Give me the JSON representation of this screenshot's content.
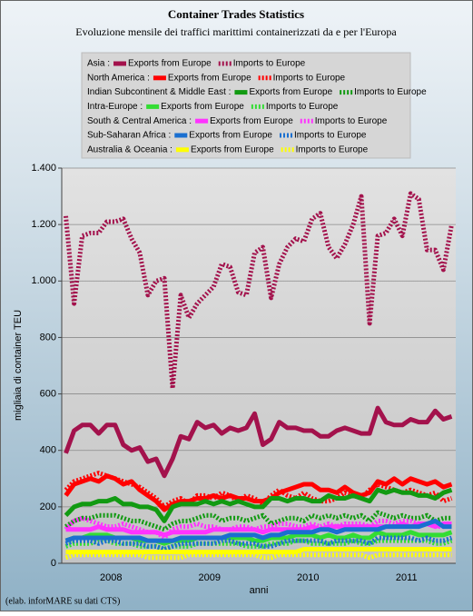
{
  "chart_data": {
    "type": "line",
    "title": "Container Trades Statistics",
    "subtitle": "Evoluzione mensile dei traffici marittimi containerizzati da e per l'Europa",
    "y_label": "migliaia di container TEU",
    "x_label": "anni",
    "source": "(elab. inforMARE su dati CTS)",
    "categories": [
      null,
      null,
      null,
      null,
      null,
      "2008",
      null,
      null,
      null,
      null,
      null,
      null,
      null,
      null,
      null,
      null,
      null,
      "2009",
      null,
      null,
      null,
      null,
      null,
      null,
      null,
      null,
      null,
      null,
      null,
      "2010",
      null,
      null,
      null,
      null,
      null,
      null,
      null,
      null,
      null,
      null,
      null,
      "2011",
      null,
      null,
      null,
      null,
      null,
      null
    ],
    "ylim": [
      0,
      1400
    ],
    "yticks": [
      0,
      200,
      400,
      600,
      800,
      {
        "value": 1000,
        "label": "1.000"
      },
      {
        "value": 1200,
        "label": "1.200"
      },
      {
        "value": 1400,
        "label": "1.400"
      }
    ],
    "grid": true,
    "groups": [
      "Asia :",
      "North America :",
      "Indian Subcontinent & Middle East :",
      "Intra-Europe :",
      "South & Central America :",
      "Sub-Saharan Africa :",
      "Australia & Oceania :"
    ],
    "series": [
      {
        "name": "Exports from Europe",
        "color": "#a3124c",
        "dashed": false,
        "values": [
          390,
          470,
          490,
          490,
          460,
          490,
          490,
          420,
          400,
          410,
          360,
          370,
          310,
          370,
          450,
          440,
          500,
          480,
          490,
          460,
          480,
          470,
          480,
          530,
          420,
          440,
          500,
          480,
          480,
          470,
          470,
          450,
          450,
          470,
          480,
          470,
          460,
          460,
          550,
          500,
          490,
          490,
          510,
          500,
          500,
          540,
          510,
          520
        ]
      },
      {
        "name": "Imports to Europe",
        "color": "#a3124c",
        "dashed": true,
        "values": [
          1230,
          920,
          1160,
          1170,
          1170,
          1210,
          1210,
          1220,
          1150,
          1100,
          950,
          1000,
          1010,
          620,
          950,
          870,
          920,
          950,
          980,
          1060,
          1050,
          960,
          950,
          1100,
          1120,
          940,
          1060,
          1120,
          1150,
          1140,
          1220,
          1240,
          1120,
          1080,
          1130,
          1200,
          1300,
          850,
          1160,
          1170,
          1220,
          1160,
          1310,
          1290,
          1110,
          1110,
          1040,
          1200
        ]
      },
      {
        "name": "Exports from Europe",
        "color": "#ff0000",
        "dashed": false,
        "values": [
          240,
          280,
          290,
          300,
          290,
          310,
          300,
          280,
          290,
          260,
          240,
          220,
          190,
          210,
          220,
          220,
          230,
          230,
          240,
          230,
          240,
          230,
          230,
          220,
          220,
          230,
          250,
          260,
          270,
          280,
          280,
          260,
          260,
          250,
          270,
          250,
          240,
          250,
          290,
          280,
          300,
          280,
          300,
          290,
          280,
          290,
          270,
          280
        ]
      },
      {
        "name": "Imports to Europe",
        "color": "#ff0000",
        "dashed": true,
        "values": [
          260,
          290,
          300,
          310,
          320,
          310,
          300,
          290,
          280,
          270,
          250,
          230,
          200,
          220,
          230,
          210,
          240,
          240,
          230,
          250,
          240,
          220,
          240,
          230,
          210,
          240,
          260,
          240,
          230,
          250,
          230,
          220,
          220,
          230,
          250,
          240,
          230,
          260,
          280,
          270,
          260,
          250,
          260,
          250,
          240,
          250,
          220,
          230
        ]
      },
      {
        "name": "Exports from Europe",
        "color": "#129a12",
        "dashed": false,
        "values": [
          170,
          200,
          210,
          210,
          220,
          220,
          230,
          210,
          210,
          200,
          200,
          190,
          150,
          200,
          210,
          210,
          210,
          220,
          210,
          220,
          210,
          220,
          210,
          200,
          200,
          230,
          230,
          220,
          230,
          230,
          220,
          220,
          240,
          230,
          230,
          240,
          230,
          220,
          260,
          250,
          260,
          250,
          250,
          240,
          240,
          230,
          250,
          260
        ]
      },
      {
        "name": "Imports to Europe",
        "color": "#129a12",
        "dashed": true,
        "values": [
          130,
          150,
          160,
          160,
          170,
          170,
          170,
          160,
          150,
          150,
          140,
          130,
          120,
          140,
          150,
          150,
          160,
          170,
          170,
          150,
          160,
          160,
          150,
          160,
          170,
          140,
          150,
          160,
          160,
          150,
          170,
          160,
          170,
          160,
          170,
          160,
          170,
          150,
          180,
          170,
          160,
          170,
          160,
          160,
          170,
          150,
          160,
          160
        ]
      },
      {
        "name": "Exports from Europe",
        "color": "#33dd33",
        "dashed": false,
        "values": [
          80,
          90,
          90,
          100,
          100,
          100,
          90,
          90,
          90,
          80,
          80,
          80,
          70,
          80,
          80,
          80,
          90,
          90,
          90,
          90,
          90,
          90,
          90,
          80,
          80,
          90,
          90,
          90,
          100,
          100,
          100,
          90,
          100,
          90,
          90,
          100,
          90,
          90,
          110,
          100,
          100,
          100,
          110,
          100,
          100,
          100,
          100,
          110
        ]
      },
      {
        "name": "Imports to Europe",
        "color": "#33dd33",
        "dashed": true,
        "values": [
          60,
          70,
          70,
          70,
          80,
          80,
          70,
          70,
          70,
          60,
          60,
          60,
          50,
          60,
          60,
          60,
          70,
          70,
          70,
          70,
          70,
          70,
          60,
          60,
          60,
          70,
          70,
          70,
          80,
          80,
          70,
          70,
          70,
          70,
          70,
          80,
          70,
          70,
          80,
          80,
          80,
          80,
          80,
          80,
          80,
          70,
          70,
          80
        ]
      },
      {
        "name": "Exports from Europe",
        "color": "#ff33ff",
        "dashed": false,
        "values": [
          120,
          120,
          120,
          120,
          130,
          120,
          120,
          120,
          110,
          110,
          110,
          110,
          100,
          110,
          110,
          110,
          110,
          110,
          120,
          120,
          120,
          120,
          120,
          120,
          110,
          120,
          120,
          120,
          120,
          120,
          130,
          120,
          130,
          130,
          130,
          130,
          130,
          130,
          130,
          130,
          130,
          140,
          130,
          140,
          140,
          130,
          140,
          140
        ]
      },
      {
        "name": "Imports to Europe",
        "color": "#ff33ff",
        "dashed": true,
        "values": [
          120,
          150,
          160,
          150,
          140,
          130,
          130,
          140,
          130,
          120,
          110,
          110,
          90,
          120,
          130,
          130,
          140,
          130,
          130,
          120,
          120,
          130,
          130,
          120,
          130,
          130,
          140,
          140,
          130,
          130,
          140,
          130,
          140,
          130,
          140,
          140,
          140,
          130,
          150,
          150,
          140,
          150,
          150,
          140,
          140,
          130,
          130,
          140
        ]
      },
      {
        "name": "Exports from Europe",
        "color": "#1a6fd0",
        "dashed": false,
        "values": [
          80,
          90,
          90,
          90,
          90,
          90,
          90,
          90,
          90,
          90,
          80,
          80,
          80,
          80,
          90,
          90,
          90,
          90,
          90,
          90,
          100,
          100,
          100,
          100,
          90,
          100,
          100,
          110,
          110,
          110,
          110,
          120,
          120,
          110,
          120,
          120,
          120,
          120,
          120,
          130,
          130,
          130,
          130,
          130,
          140,
          150,
          130,
          130
        ]
      },
      {
        "name": "Imports to Europe",
        "color": "#1a6fd0",
        "dashed": true,
        "values": [
          70,
          80,
          80,
          80,
          70,
          80,
          80,
          70,
          70,
          70,
          60,
          60,
          50,
          60,
          70,
          70,
          70,
          70,
          70,
          80,
          80,
          70,
          70,
          70,
          60,
          60,
          70,
          80,
          80,
          80,
          80,
          80,
          70,
          80,
          80,
          80,
          80,
          70,
          90,
          90,
          90,
          90,
          90,
          80,
          90,
          80,
          80,
          90
        ]
      },
      {
        "name": "Exports from Europe",
        "color": "#ffff00",
        "dashed": false,
        "values": [
          40,
          40,
          40,
          40,
          40,
          40,
          40,
          40,
          40,
          40,
          40,
          40,
          40,
          40,
          40,
          40,
          40,
          40,
          40,
          40,
          40,
          40,
          40,
          40,
          40,
          40,
          40,
          40,
          40,
          50,
          50,
          50,
          50,
          50,
          50,
          50,
          50,
          50,
          50,
          50,
          50,
          50,
          50,
          50,
          50,
          50,
          50,
          50
        ]
      },
      {
        "name": "Imports to Europe",
        "color": "#ffff00",
        "dashed": true,
        "values": [
          20,
          30,
          30,
          30,
          30,
          30,
          30,
          30,
          30,
          30,
          20,
          20,
          20,
          20,
          20,
          30,
          30,
          30,
          30,
          30,
          30,
          30,
          30,
          30,
          20,
          20,
          30,
          30,
          30,
          30,
          30,
          30,
          30,
          30,
          30,
          30,
          30,
          20,
          30,
          30,
          30,
          30,
          30,
          30,
          30,
          30,
          30,
          30
        ]
      }
    ]
  }
}
